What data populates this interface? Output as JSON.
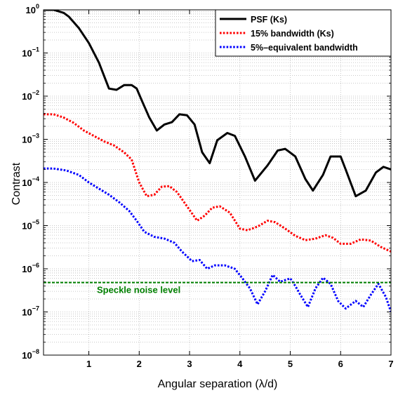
{
  "chart_data": {
    "type": "line",
    "xlabel": "Angular separation (λ/d)",
    "ylabel": "Contrast",
    "xlim": [
      0.1,
      7
    ],
    "ylim": [
      1e-08,
      1
    ],
    "yscale": "log",
    "grid": true,
    "legend_position": "top-right",
    "x_ticks": [
      1,
      2,
      3,
      4,
      5,
      6,
      7
    ],
    "x_tick_labels": [
      "1",
      "2",
      "3",
      "4",
      "5",
      "6",
      "7"
    ],
    "y_ticks": [
      1e-08,
      1e-07,
      1e-06,
      1e-05,
      0.0001,
      0.001,
      0.01,
      0.1,
      1
    ],
    "y_tick_labels": [
      {
        "base": "10",
        "exp": "−8"
      },
      {
        "base": "10",
        "exp": "−7"
      },
      {
        "base": "10",
        "exp": "−6"
      },
      {
        "base": "10",
        "exp": "−5"
      },
      {
        "base": "10",
        "exp": "−4"
      },
      {
        "base": "10",
        "exp": "−3"
      },
      {
        "base": "10",
        "exp": "−2"
      },
      {
        "base": "10",
        "exp": "−1"
      },
      {
        "base": "10",
        "exp": "0"
      }
    ],
    "series": [
      {
        "name": "PSF (Ks)",
        "color": "#000000",
        "style": "solid",
        "points": [
          [
            0.1,
            1.0
          ],
          [
            0.3,
            1.0
          ],
          [
            0.5,
            0.85
          ],
          [
            0.6,
            0.7
          ],
          [
            0.8,
            0.38
          ],
          [
            1.0,
            0.17
          ],
          [
            1.2,
            0.06
          ],
          [
            1.3,
            0.03
          ],
          [
            1.4,
            0.015
          ],
          [
            1.55,
            0.014
          ],
          [
            1.7,
            0.018
          ],
          [
            1.85,
            0.018
          ],
          [
            1.95,
            0.015
          ],
          [
            2.05,
            0.008
          ],
          [
            2.2,
            0.0032
          ],
          [
            2.35,
            0.0016
          ],
          [
            2.5,
            0.0022
          ],
          [
            2.65,
            0.0025
          ],
          [
            2.8,
            0.0038
          ],
          [
            2.95,
            0.0036
          ],
          [
            3.1,
            0.0022
          ],
          [
            3.25,
            0.0005
          ],
          [
            3.4,
            0.00028
          ],
          [
            3.55,
            0.00095
          ],
          [
            3.75,
            0.0014
          ],
          [
            3.9,
            0.0012
          ],
          [
            4.1,
            0.0004
          ],
          [
            4.3,
            0.00011
          ],
          [
            4.55,
            0.00025
          ],
          [
            4.75,
            0.00055
          ],
          [
            4.9,
            0.0006
          ],
          [
            5.1,
            0.0004
          ],
          [
            5.3,
            0.00012
          ],
          [
            5.45,
            6.5e-05
          ],
          [
            5.65,
            0.00015
          ],
          [
            5.8,
            0.0004
          ],
          [
            6.0,
            0.0004
          ],
          [
            6.1,
            0.0002
          ],
          [
            6.3,
            4.8e-05
          ],
          [
            6.5,
            6.5e-05
          ],
          [
            6.7,
            0.00017
          ],
          [
            6.85,
            0.00023
          ],
          [
            7.0,
            0.0002
          ]
        ]
      },
      {
        "name": "15% bandwidth (Ks)",
        "color": "#ff0000",
        "style": "dotted",
        "points": [
          [
            0.1,
            0.0038
          ],
          [
            0.3,
            0.0038
          ],
          [
            0.5,
            0.0032
          ],
          [
            0.7,
            0.0024
          ],
          [
            0.9,
            0.0016
          ],
          [
            1.1,
            0.0012
          ],
          [
            1.3,
            0.0009
          ],
          [
            1.5,
            0.00072
          ],
          [
            1.7,
            0.0005
          ],
          [
            1.85,
            0.00034
          ],
          [
            2.0,
            0.0001
          ],
          [
            2.15,
            4.8e-05
          ],
          [
            2.3,
            5.2e-05
          ],
          [
            2.45,
            8e-05
          ],
          [
            2.6,
            8.2e-05
          ],
          [
            2.75,
            6e-05
          ],
          [
            2.95,
            2.8e-05
          ],
          [
            3.15,
            1.3e-05
          ],
          [
            3.3,
            1.7e-05
          ],
          [
            3.45,
            2.6e-05
          ],
          [
            3.6,
            2.8e-05
          ],
          [
            3.8,
            2e-05
          ],
          [
            4.0,
            8.5e-06
          ],
          [
            4.15,
            7.8e-06
          ],
          [
            4.35,
            9.5e-06
          ],
          [
            4.55,
            1.3e-05
          ],
          [
            4.7,
            1.2e-05
          ],
          [
            4.9,
            8.5e-06
          ],
          [
            5.1,
            5.8e-06
          ],
          [
            5.3,
            4.6e-06
          ],
          [
            5.5,
            5e-06
          ],
          [
            5.7,
            6e-06
          ],
          [
            5.85,
            5.2e-06
          ],
          [
            6.0,
            3.8e-06
          ],
          [
            6.2,
            3.8e-06
          ],
          [
            6.4,
            4.8e-06
          ],
          [
            6.6,
            4.5e-06
          ],
          [
            6.8,
            3.2e-06
          ],
          [
            7.0,
            2.5e-06
          ]
        ]
      },
      {
        "name": "5%–equivalent bandwidth",
        "color": "#0000ff",
        "style": "dotted",
        "points": [
          [
            0.1,
            0.00021
          ],
          [
            0.3,
            0.00021
          ],
          [
            0.55,
            0.00019
          ],
          [
            0.8,
            0.00015
          ],
          [
            1.0,
            0.0001
          ],
          [
            1.2,
            7.2e-05
          ],
          [
            1.4,
            5.2e-05
          ],
          [
            1.6,
            3.5e-05
          ],
          [
            1.8,
            2.2e-05
          ],
          [
            1.95,
            1.3e-05
          ],
          [
            2.1,
            7.2e-06
          ],
          [
            2.3,
            5.5e-06
          ],
          [
            2.5,
            5e-06
          ],
          [
            2.7,
            4e-06
          ],
          [
            2.85,
            2.5e-06
          ],
          [
            3.05,
            1.5e-06
          ],
          [
            3.2,
            1.6e-06
          ],
          [
            3.35,
            1e-06
          ],
          [
            3.5,
            1.2e-06
          ],
          [
            3.7,
            1.2e-06
          ],
          [
            3.9,
            1e-06
          ],
          [
            4.05,
            6e-07
          ],
          [
            4.2,
            3.5e-07
          ],
          [
            4.35,
            1.5e-07
          ],
          [
            4.5,
            3e-07
          ],
          [
            4.65,
            7.2e-07
          ],
          [
            4.8,
            5e-07
          ],
          [
            5.0,
            6e-07
          ],
          [
            5.1,
            4e-07
          ],
          [
            5.2,
            2.5e-07
          ],
          [
            5.35,
            1.3e-07
          ],
          [
            5.5,
            3.5e-07
          ],
          [
            5.65,
            6.2e-07
          ],
          [
            5.8,
            4.5e-07
          ],
          [
            5.95,
            1.8e-07
          ],
          [
            6.1,
            1.2e-07
          ],
          [
            6.3,
            1.8e-07
          ],
          [
            6.45,
            1.3e-07
          ],
          [
            6.6,
            2.5e-07
          ],
          [
            6.75,
            4.5e-07
          ],
          [
            6.9,
            2.2e-07
          ],
          [
            7.0,
            1e-07
          ]
        ]
      }
    ],
    "reference_lines": [
      {
        "label": "Speckle noise level",
        "value": 4.8e-07,
        "color": "#008000",
        "style": "dashed"
      }
    ]
  }
}
